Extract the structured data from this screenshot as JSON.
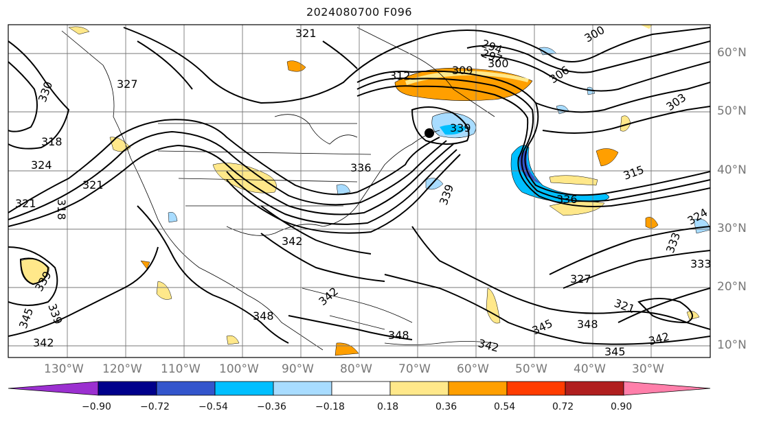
{
  "title": "2024080700 F096",
  "lat_labels": [
    "60°N",
    "50°N",
    "40°N",
    "30°N",
    "20°N",
    "10°N"
  ],
  "lon_labels": [
    "130°W",
    "120°W",
    "110°W",
    "100°W",
    "90°W",
    "80°W",
    "70°W",
    "60°W",
    "50°W",
    "40°W",
    "30°W"
  ],
  "contour_labels": [
    "321",
    "327",
    "330",
    "318",
    "324",
    "321",
    "318",
    "321",
    "294",
    "297",
    "300",
    "309",
    "312",
    "300",
    "306",
    "303",
    "315",
    "336",
    "339",
    "342",
    "342",
    "348",
    "345",
    "348",
    "342",
    "345",
    "333",
    "327",
    "324",
    "321",
    "339",
    "339",
    "342",
    "345",
    "348",
    "339",
    "336",
    "342",
    "333"
  ],
  "colorbar": {
    "ticks": [
      "−0.90",
      "−0.72",
      "−0.54",
      "−0.36",
      "−0.18",
      "0.18",
      "0.36",
      "0.54",
      "0.72",
      "0.90"
    ],
    "colors": [
      "#9b30d0",
      "#00008b",
      "#3355cc",
      "#00bfff",
      "#a8dcff",
      "#ffffff",
      "#ffe88a",
      "#ff9f00",
      "#ff3c00",
      "#b01e1e",
      "#ff7faa"
    ]
  }
}
